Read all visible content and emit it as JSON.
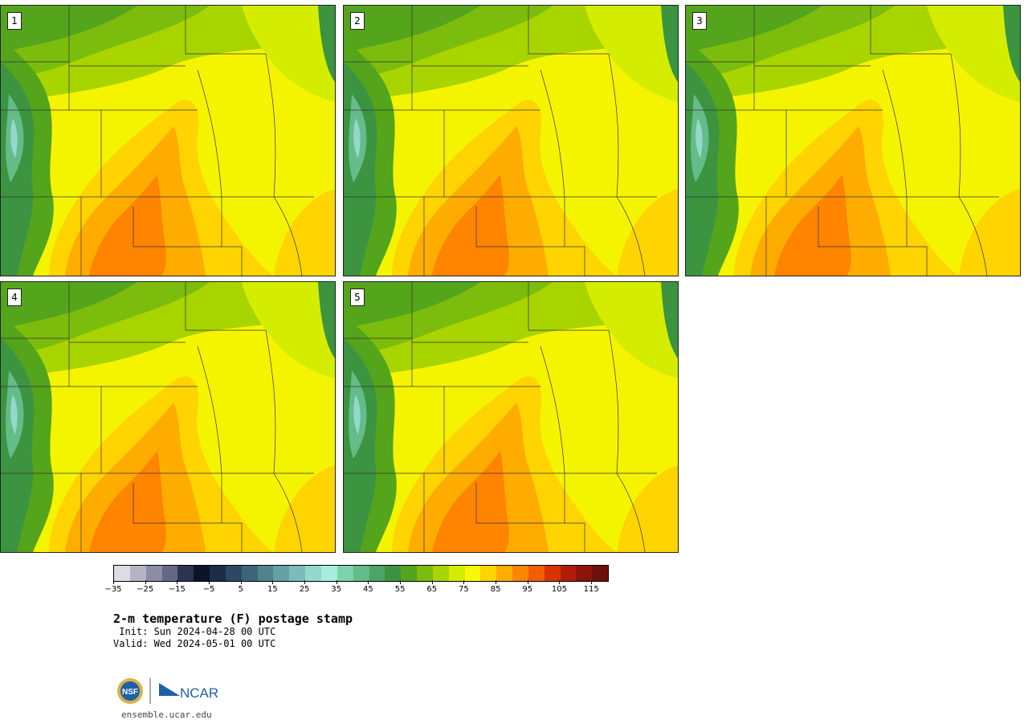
{
  "panels": [
    {
      "label": "1"
    },
    {
      "label": "2"
    },
    {
      "label": "3"
    },
    {
      "label": "4"
    },
    {
      "label": "5"
    }
  ],
  "colorbar": {
    "colors": [
      "#dcdce4",
      "#b4b4c4",
      "#8c8ca4",
      "#646884",
      "#2c3454",
      "#0c1428",
      "#1c2c48",
      "#2c4864",
      "#3c6478",
      "#50848c",
      "#64a0a4",
      "#7cbcb8",
      "#94d8cc",
      "#a8ecdc",
      "#7cd4ac",
      "#64bc88",
      "#4ca468",
      "#3c9440",
      "#54a41c",
      "#7cbc0c",
      "#a8d400",
      "#d4ec00",
      "#f8f800",
      "#ffd400",
      "#ffac00",
      "#ff8400",
      "#f45c00",
      "#d83400",
      "#b01c08",
      "#8c140c",
      "#6c100c"
    ],
    "tick_labels": [
      "−35",
      "−25",
      "−15",
      "−5",
      "5",
      "15",
      "25",
      "35",
      "45",
      "55",
      "65",
      "75",
      "85",
      "95",
      "105",
      "115"
    ]
  },
  "title": "2-m temperature (F) postage stamp",
  "init": " Init: Sun 2024-04-28 00 UTC",
  "valid": "Valid: Wed 2024-05-01 00 UTC",
  "logo_text": "NCAR",
  "logo_seal": "NSF",
  "website": "ensemble.ucar.edu"
}
